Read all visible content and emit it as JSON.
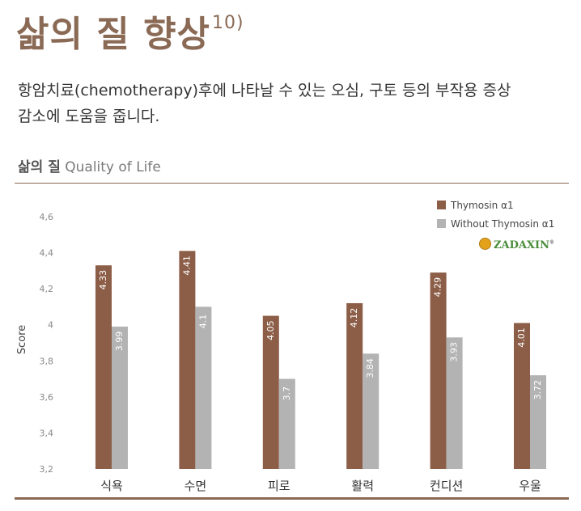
{
  "header": {
    "title": "삶의 질 향상",
    "ref": "10)",
    "description_line1": "항암치료(chemotherapy)후에 나타날 수 있는 오심, 구토 등의 부작용 증상",
    "description_line2": "감소에 도움을 줍니다.",
    "section_kr": "삶의 질",
    "section_en": "Quality of Life"
  },
  "logo": {
    "text": "ZADAXIN",
    "mark": "®"
  },
  "colors": {
    "accent": "#8a6a55",
    "series1": "#8c5e48",
    "series2": "#b3b3b3"
  },
  "chart_data": {
    "type": "bar",
    "categories": [
      "식욕",
      "수면",
      "피로",
      "활력",
      "컨디션",
      "우울"
    ],
    "series": [
      {
        "name": "Thymosin α1",
        "values": [
          4.33,
          4.41,
          4.05,
          4.12,
          4.29,
          4.01
        ],
        "labels": [
          "4.33",
          "4.41",
          "4.05",
          "4.12",
          "4.29",
          "4.01"
        ]
      },
      {
        "name": "Without Thymosin α1",
        "values": [
          3.99,
          4.1,
          3.7,
          3.84,
          3.93,
          3.72
        ],
        "labels": [
          "3.99",
          "4.1",
          "3.7",
          "3.84",
          "3.93",
          "3.72"
        ]
      }
    ],
    "ylabel": "Score",
    "ylim": [
      3.2,
      4.6
    ],
    "yticks": [
      "3,2",
      "3,4",
      "3,6",
      "3,8",
      "4",
      "4,2",
      "4,4",
      "4,6"
    ],
    "legend_position": "top-right",
    "grid": false
  }
}
